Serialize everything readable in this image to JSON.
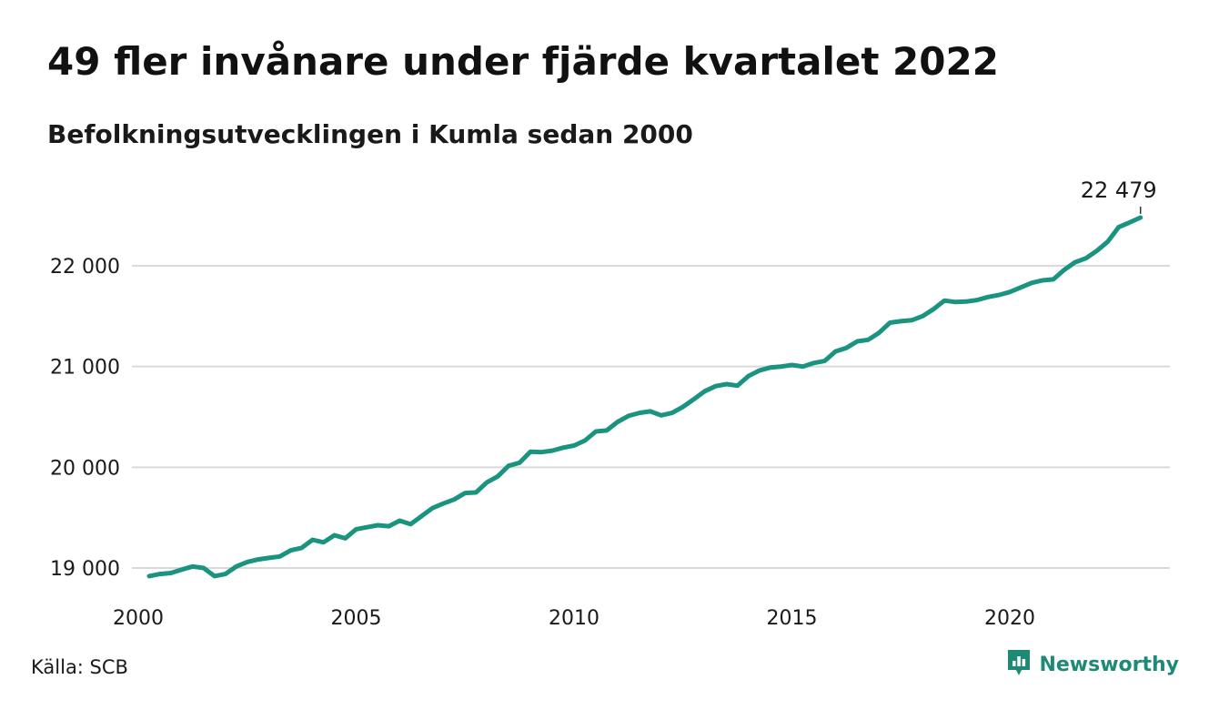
{
  "title": "49 fler invånare under fjärde kvartalet 2022",
  "subtitle": "Befolkningsutvecklingen i Kumla sedan 2000",
  "source": "Källa: SCB",
  "brand": {
    "name": "Newsworthy",
    "icon": "newsworthy-logo-icon",
    "color": "#1e8a76"
  },
  "colors": {
    "line": "#1a9481",
    "grid": "#d9d9d9"
  },
  "chart_data": {
    "type": "line",
    "title": "49 fler invånare under fjärde kvartalet 2022",
    "subtitle": "Befolkningsutvecklingen i Kumla sedan 2000",
    "xlabel": "",
    "ylabel": "",
    "x_ticks": [
      2000,
      2005,
      2010,
      2015,
      2020
    ],
    "x_tick_labels": [
      "2000",
      "2005",
      "2010",
      "2015",
      "2020"
    ],
    "y_ticks": [
      19000,
      20000,
      21000,
      22000
    ],
    "y_tick_labels": [
      "19 000",
      "20 000",
      "21 000",
      "22 000"
    ],
    "xlim": [
      2000,
      2023.5
    ],
    "ylim": [
      18880,
      22700
    ],
    "grid": "horizontal",
    "legend": "none",
    "end_label": "22 479",
    "series": [
      {
        "x": [
          2000.25,
          2000.5,
          2000.75,
          2001,
          2001.25,
          2001.5,
          2001.75,
          2002,
          2002.25,
          2002.5,
          2002.75,
          2003,
          2003.25,
          2003.5,
          2003.75,
          2004,
          2004.25,
          2004.5,
          2004.75,
          2005,
          2005.25,
          2005.5,
          2005.75,
          2006,
          2006.25,
          2006.5,
          2006.75,
          2007,
          2007.25,
          2007.5,
          2007.75,
          2008,
          2008.25,
          2008.5,
          2008.75,
          2009,
          2009.25,
          2009.5,
          2009.75,
          2010,
          2010.25,
          2010.5,
          2010.75,
          2011,
          2011.25,
          2011.5,
          2011.75,
          2012,
          2012.25,
          2012.5,
          2012.75,
          2013,
          2013.25,
          2013.5,
          2013.75,
          2014,
          2014.25,
          2014.5,
          2014.75,
          2015,
          2015.25,
          2015.5,
          2015.75,
          2016,
          2016.25,
          2016.5,
          2016.75,
          2017,
          2017.25,
          2017.5,
          2017.75,
          2018,
          2018.25,
          2018.5,
          2018.75,
          2019,
          2019.25,
          2019.5,
          2019.75,
          2020,
          2020.25,
          2020.5,
          2020.75,
          2021,
          2021.25,
          2021.5,
          2021.75,
          2022,
          2022.25,
          2022.5,
          2022.75,
          2023
        ],
        "y": [
          18920,
          18940,
          18950,
          18985,
          19015,
          19000,
          18920,
          18940,
          19015,
          19060,
          19085,
          19100,
          19115,
          19175,
          19200,
          19280,
          19255,
          19325,
          19295,
          19385,
          19405,
          19425,
          19415,
          19470,
          19435,
          19515,
          19595,
          19640,
          19680,
          19745,
          19750,
          19850,
          19910,
          20015,
          20045,
          20155,
          20150,
          20165,
          20195,
          20215,
          20265,
          20355,
          20365,
          20450,
          20510,
          20540,
          20555,
          20515,
          20540,
          20600,
          20675,
          20755,
          20805,
          20825,
          20810,
          20905,
          20960,
          20990,
          21000,
          21015,
          21000,
          21035,
          21055,
          21150,
          21185,
          21250,
          21265,
          21335,
          21435,
          21450,
          21460,
          21500,
          21570,
          21655,
          21640,
          21645,
          21660,
          21690,
          21710,
          21740,
          21785,
          21830,
          21855,
          21865,
          21960,
          22035,
          22075,
          22150,
          22240,
          22385,
          22430,
          22479
        ]
      }
    ]
  }
}
